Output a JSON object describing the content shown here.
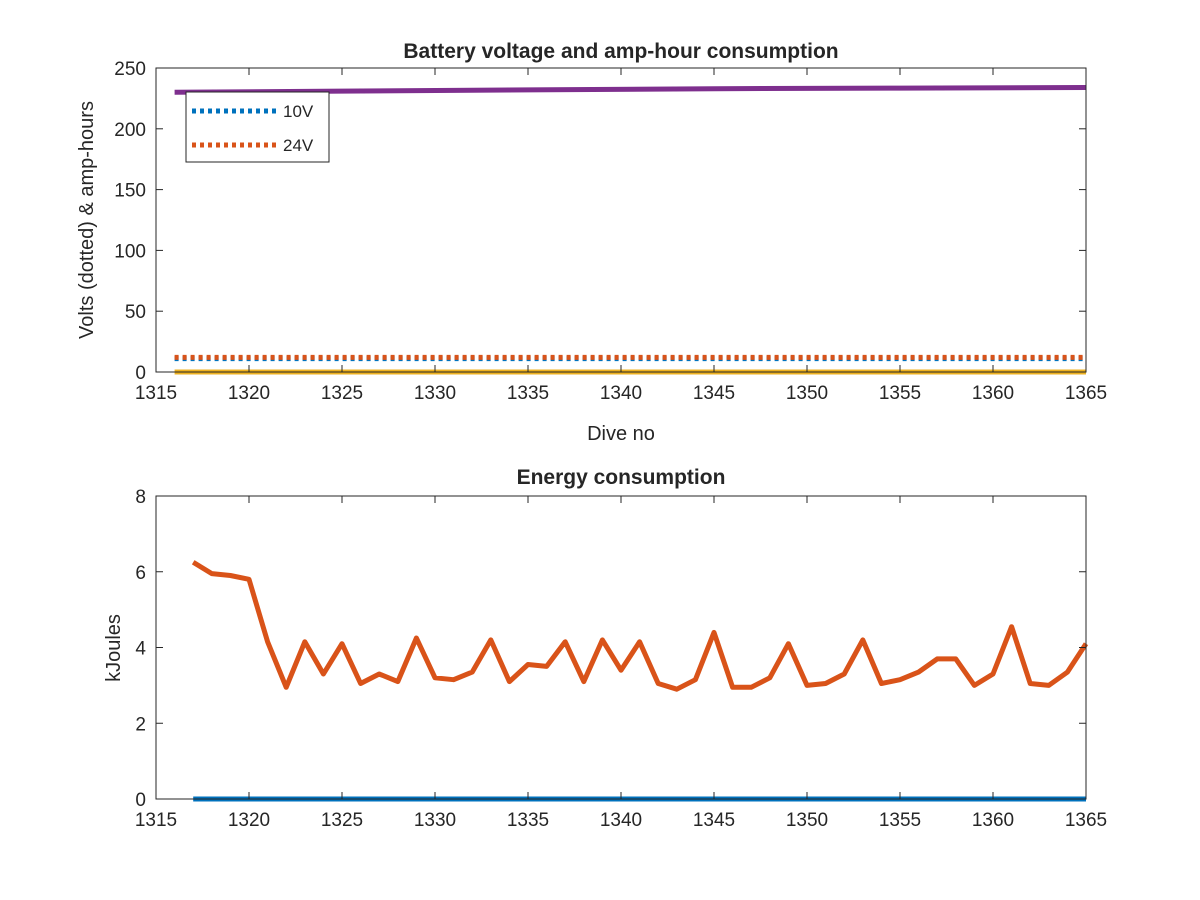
{
  "chart_data": [
    {
      "type": "line",
      "title": "Battery voltage and amp-hour consumption",
      "xlabel": "Dive no",
      "ylabel": "Volts (dotted) & amp-hours",
      "xlim": [
        1315,
        1365
      ],
      "ylim": [
        0,
        250
      ],
      "xticks": [
        1315,
        1320,
        1325,
        1330,
        1335,
        1340,
        1345,
        1350,
        1355,
        1360,
        1365
      ],
      "yticks": [
        0,
        50,
        100,
        150,
        200,
        250
      ],
      "grid": false,
      "legend": {
        "location": "top-left",
        "entries": [
          "10V",
          "24V"
        ]
      },
      "series": [
        {
          "name": "10V",
          "style": "dotted",
          "color": "#0072BD",
          "x": [
            1316,
            1365
          ],
          "y": [
            11,
            11
          ]
        },
        {
          "name": "24V",
          "style": "dotted",
          "color": "#D95319",
          "x": [
            1316,
            1365
          ],
          "y": [
            12,
            12
          ]
        },
        {
          "style": "solid",
          "color": "#EDB120",
          "x": [
            1316,
            1365
          ],
          "y": [
            0,
            0
          ]
        },
        {
          "style": "solid",
          "color": "#7E2F8E",
          "x": [
            1316,
            1325,
            1335,
            1345,
            1355,
            1365
          ],
          "y": [
            230,
            231,
            232,
            233,
            233.5,
            234
          ]
        }
      ]
    },
    {
      "type": "line",
      "title": "Energy consumption",
      "xlabel": "",
      "ylabel": "kJoules",
      "xlim": [
        1315,
        1365
      ],
      "ylim": [
        0,
        8
      ],
      "xticks": [
        1315,
        1320,
        1325,
        1330,
        1335,
        1340,
        1345,
        1350,
        1355,
        1360,
        1365
      ],
      "yticks": [
        0,
        2,
        4,
        6,
        8
      ],
      "grid": false,
      "series": [
        {
          "style": "solid",
          "color": "#0072BD",
          "x": [
            1317,
            1365
          ],
          "y": [
            0,
            0
          ]
        },
        {
          "style": "solid",
          "color": "#D95319",
          "x": [
            1317,
            1318,
            1319,
            1320,
            1321,
            1322,
            1323,
            1324,
            1325,
            1326,
            1327,
            1328,
            1329,
            1330,
            1331,
            1332,
            1333,
            1334,
            1335,
            1336,
            1337,
            1338,
            1339,
            1340,
            1341,
            1342,
            1343,
            1344,
            1345,
            1346,
            1347,
            1348,
            1349,
            1350,
            1351,
            1352,
            1353,
            1354,
            1355,
            1356,
            1357,
            1358,
            1359,
            1360,
            1361,
            1362,
            1363,
            1364,
            1365
          ],
          "y": [
            6.25,
            5.95,
            5.9,
            5.8,
            4.15,
            2.95,
            4.15,
            3.3,
            4.1,
            3.05,
            3.3,
            3.1,
            4.25,
            3.2,
            3.15,
            3.35,
            4.2,
            3.1,
            3.55,
            3.5,
            4.15,
            3.1,
            4.2,
            3.4,
            4.15,
            3.05,
            2.9,
            3.15,
            4.4,
            2.95,
            2.95,
            3.2,
            4.1,
            3.0,
            3.05,
            3.3,
            4.2,
            3.05,
            3.15,
            3.35,
            3.7,
            3.7,
            3.0,
            3.3,
            4.55,
            3.05,
            3.0,
            3.35,
            4.1
          ]
        }
      ]
    }
  ]
}
